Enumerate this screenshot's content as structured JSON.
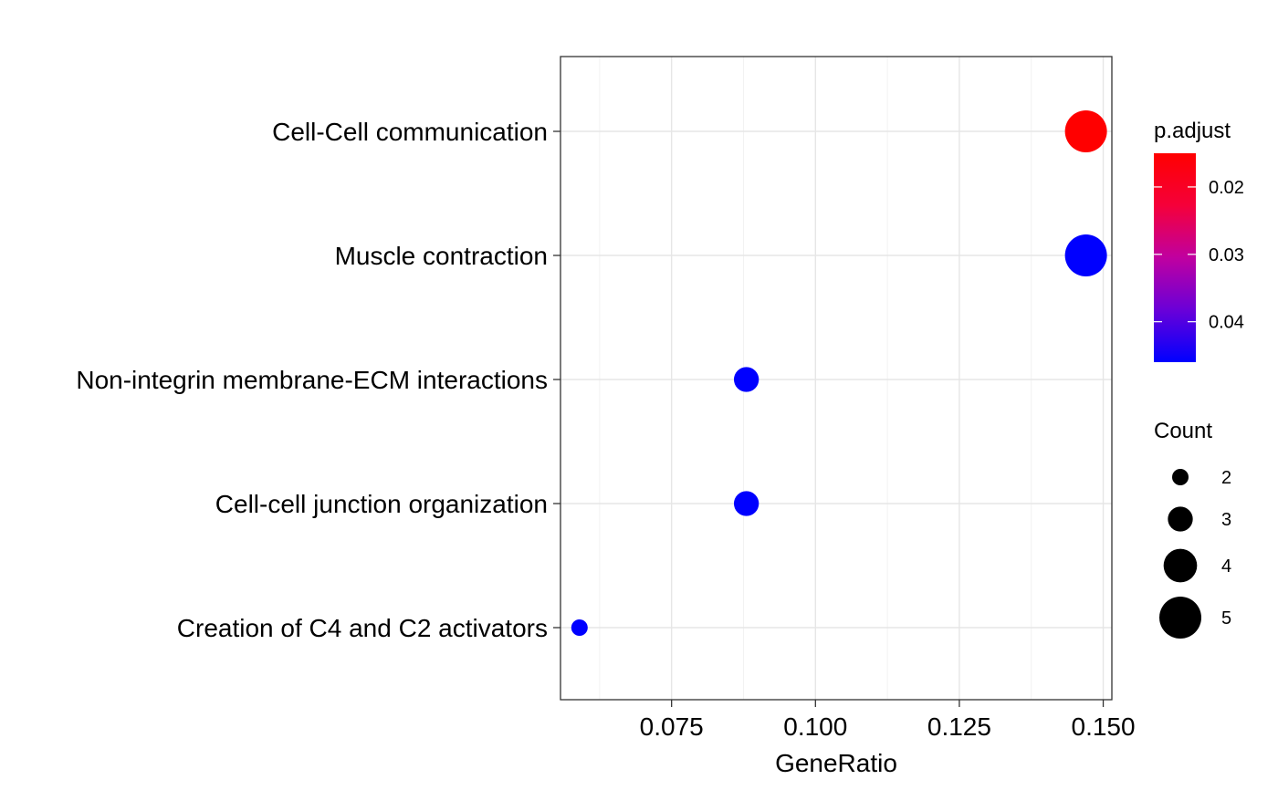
{
  "chart_data": {
    "type": "scatter",
    "title": "",
    "xlabel": "GeneRatio",
    "ylabel": "",
    "xlim": [
      0.0557,
      0.1515
    ],
    "x_ticks": [
      0.075,
      0.1,
      0.125,
      0.15
    ],
    "x_tick_labels": [
      "0.075",
      "0.100",
      "0.125",
      "0.150"
    ],
    "categories": [
      "Cell-Cell communication",
      "Muscle contraction",
      "Non-integrin membrane-ECM interactions",
      "Cell-cell junction organization",
      "Creation of C4 and C2 activators"
    ],
    "points": [
      {
        "term": "Cell-Cell communication",
        "gene_ratio": 0.147,
        "count": 5,
        "p_adjust": 0.015
      },
      {
        "term": "Muscle contraction",
        "gene_ratio": 0.147,
        "count": 5,
        "p_adjust": 0.046
      },
      {
        "term": "Non-integrin membrane-ECM interactions",
        "gene_ratio": 0.088,
        "count": 3,
        "p_adjust": 0.046
      },
      {
        "term": "Cell-cell junction organization",
        "gene_ratio": 0.088,
        "count": 3,
        "p_adjust": 0.046
      },
      {
        "term": "Creation of C4 and C2 activators",
        "gene_ratio": 0.059,
        "count": 2,
        "p_adjust": 0.046
      }
    ],
    "grid": true,
    "color_legend": {
      "title": "p.adjust",
      "range": [
        0.015,
        0.046
      ],
      "low_color": "#ff0000",
      "high_color": "#0000ff",
      "ticks": [
        0.02,
        0.03,
        0.04
      ],
      "tick_labels": [
        "0.02",
        "0.03",
        "0.04"
      ]
    },
    "size_legend": {
      "title": "Count",
      "values": [
        2,
        3,
        4,
        5
      ],
      "labels": [
        "2",
        "3",
        "4",
        "5"
      ]
    },
    "legend_position": "right"
  }
}
